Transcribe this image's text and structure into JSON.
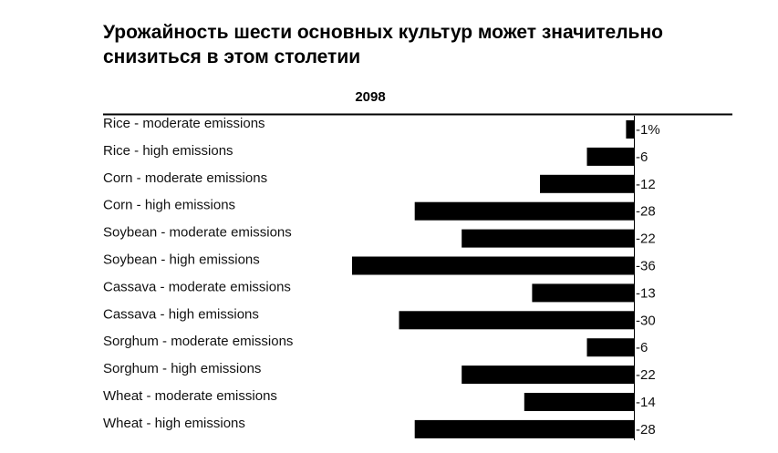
{
  "chart_data": {
    "type": "bar",
    "orientation": "horizontal",
    "title": "Урожайность шести основных культур может значительно снизиться в этом столетии",
    "column_header": "2098",
    "categories": [
      "Rice - moderate emissions",
      "Rice - high emissions",
      "Corn - moderate emissions",
      "Corn - high emissions",
      "Soybean - moderate emissions",
      "Soybean - high emissions",
      "Cassava - moderate emissions",
      "Cassava - high emissions",
      "Sorghum - moderate emissions",
      "Sorghum - high emissions",
      "Wheat - moderate emissions",
      "Wheat - high emissions"
    ],
    "values": [
      -1,
      -6,
      -12,
      -28,
      -22,
      -36,
      -13,
      -30,
      -6,
      -22,
      -14,
      -28
    ],
    "value_labels": [
      "-1%",
      "-6",
      "-12",
      "-28",
      "-22",
      "-36",
      "-13",
      "-30",
      "-6",
      "-22",
      "-14",
      "-28"
    ],
    "unit": "%",
    "bar_color": "#000000",
    "xlim": [
      -36,
      0
    ],
    "grid": false,
    "legend": "none"
  }
}
